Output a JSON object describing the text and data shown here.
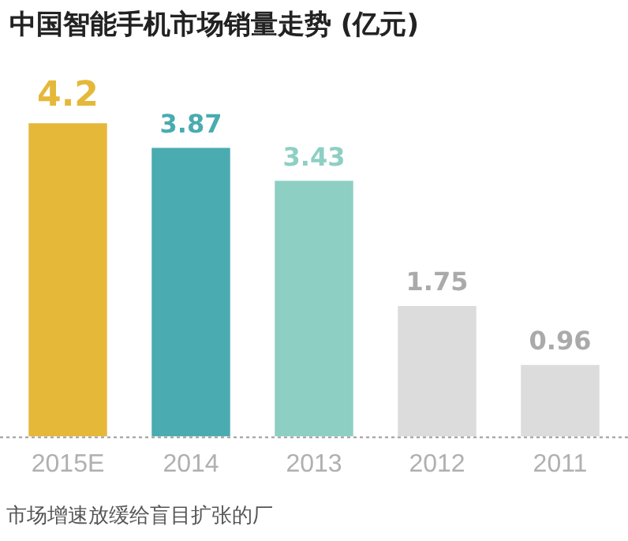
{
  "chart_data": {
    "type": "bar",
    "title": "中国智能手机市场销量走势 (亿元)",
    "categories": [
      "2015E",
      "2014",
      "2013",
      "2012",
      "2011"
    ],
    "values": [
      4.2,
      3.87,
      3.43,
      1.75,
      0.96
    ],
    "colors": [
      "#e5b83a",
      "#4aabb0",
      "#8ecfc4",
      "#dcdcdc",
      "#dcdcdc"
    ],
    "data_labels": true,
    "grid": false,
    "legend": false,
    "annotations": [
      "市场增速放缓给盲目扩张的厂"
    ]
  }
}
